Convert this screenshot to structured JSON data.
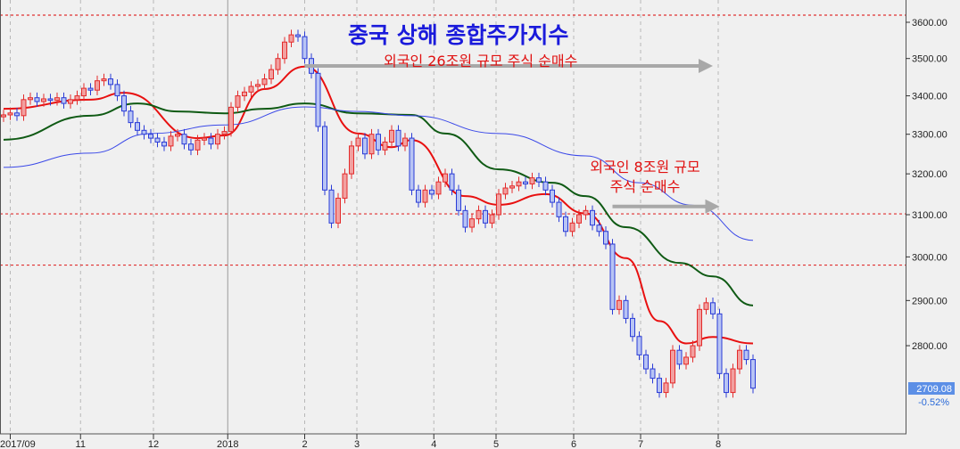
{
  "chart_data": {
    "type": "candlestick",
    "title": "중국 상해 종합주가지수",
    "annotations": [
      {
        "text": "외국인 26조원 규모 주식 순매수",
        "arrow_from_bar": 45,
        "arrow_to_bar": 106,
        "arrow_price": 3480
      },
      {
        "text_lines": [
          "외국인 8조원 규모",
          "주식 순매수"
        ],
        "arrow_from_bar": 91,
        "arrow_to_bar": 107,
        "arrow_price": 3120
      }
    ],
    "y_scale": "log",
    "ylim": [
      2660,
      3660
    ],
    "y_ticks": [
      "3600.00",
      "3500.00",
      "3400.00",
      "3300.00",
      "3200.00",
      "3100.00",
      "3000.00",
      "2900.00",
      "2800.00"
    ],
    "y_tick_values": [
      3600,
      3500,
      3400,
      3300,
      3200,
      3100,
      3000,
      2900,
      2800
    ],
    "x_ticks": [
      {
        "label": "2017/09",
        "bar": 1
      },
      {
        "label": "11",
        "bar": 11.5
      },
      {
        "label": "12",
        "bar": 22.4
      },
      {
        "label": "2018",
        "bar": 33.5
      },
      {
        "label": "2",
        "bar": 45
      },
      {
        "label": "3",
        "bar": 52.8
      },
      {
        "label": "4",
        "bar": 64.3
      },
      {
        "label": "5",
        "bar": 73.6
      },
      {
        "label": "6",
        "bar": 85.2
      },
      {
        "label": "7",
        "bar": 95.2
      },
      {
        "label": "8",
        "bar": 106.8
      }
    ],
    "reference_lines": [
      3620,
      3102,
      2981
    ],
    "colors": {
      "up": "#e32b2b",
      "down": "#2a3bd6",
      "ma_short": "#e81010",
      "ma_mid": "#0f5a14",
      "ma_long": "#3a48e8",
      "reference": "#e03030",
      "arrow": "#a8a8a8",
      "price_tag": "#5c8fe6"
    },
    "first_open": 3345,
    "close": [
      3350,
      3355,
      3348,
      3390,
      3395,
      3385,
      3392,
      3388,
      3395,
      3380,
      3390,
      3400,
      3420,
      3415,
      3440,
      3445,
      3430,
      3400,
      3360,
      3330,
      3310,
      3300,
      3290,
      3280,
      3270,
      3295,
      3300,
      3275,
      3260,
      3285,
      3290,
      3275,
      3300,
      3307,
      3370,
      3400,
      3410,
      3425,
      3430,
      3445,
      3470,
      3500,
      3545,
      3565,
      3560,
      3500,
      3460,
      3320,
      3160,
      3080,
      3140,
      3200,
      3270,
      3290,
      3250,
      3300,
      3260,
      3280,
      3310,
      3270,
      3290,
      3160,
      3130,
      3160,
      3150,
      3180,
      3200,
      3160,
      3110,
      3070,
      3090,
      3110,
      3080,
      3100,
      3150,
      3165,
      3170,
      3180,
      3175,
      3190,
      3180,
      3160,
      3130,
      3095,
      3060,
      3080,
      3100,
      3110,
      3075,
      3060,
      3030,
      2880,
      2900,
      2860,
      2820,
      2780,
      2750,
      2730,
      2700,
      2720,
      2790,
      2760,
      2775,
      2800,
      2880,
      2895,
      2870,
      2740,
      2700,
      2750,
      2790,
      2770,
      2709.08
    ],
    "moving_averages": [
      {
        "key": "ma_short",
        "points": [
          [
            0,
            3366
          ],
          [
            13,
            3390
          ],
          [
            18,
            3408
          ],
          [
            29,
            3290
          ],
          [
            33,
            3297
          ],
          [
            39,
            3418
          ],
          [
            45,
            3478
          ],
          [
            53,
            3302
          ],
          [
            58,
            3267
          ],
          [
            61,
            3285
          ],
          [
            69,
            3145
          ],
          [
            74,
            3124
          ],
          [
            81,
            3150
          ],
          [
            87,
            3103
          ],
          [
            93,
            2997
          ],
          [
            98,
            2854
          ],
          [
            102,
            2805
          ],
          [
            106,
            2819
          ],
          [
            112,
            2805
          ]
        ]
      },
      {
        "key": "ma_mid",
        "points": [
          [
            0,
            3286
          ],
          [
            13,
            3348
          ],
          [
            20,
            3380
          ],
          [
            26,
            3359
          ],
          [
            33,
            3354
          ],
          [
            39,
            3366
          ],
          [
            45,
            3380
          ],
          [
            53,
            3354
          ],
          [
            61,
            3350
          ],
          [
            66,
            3302
          ],
          [
            74,
            3211
          ],
          [
            82,
            3178
          ],
          [
            87,
            3145
          ],
          [
            93,
            3070
          ],
          [
            101,
            2986
          ],
          [
            106,
            2955
          ],
          [
            112,
            2889
          ]
        ]
      },
      {
        "key": "ma_long",
        "points": [
          [
            0,
            3216
          ],
          [
            13,
            3252
          ],
          [
            22,
            3302
          ],
          [
            33,
            3324
          ],
          [
            45,
            3371
          ],
          [
            53,
            3359
          ],
          [
            61,
            3348
          ],
          [
            74,
            3302
          ],
          [
            87,
            3245
          ],
          [
            95,
            3178
          ],
          [
            103,
            3123
          ],
          [
            112,
            3039
          ]
        ]
      }
    ],
    "last_price": "2709.08",
    "last_change": "-0.52%"
  }
}
